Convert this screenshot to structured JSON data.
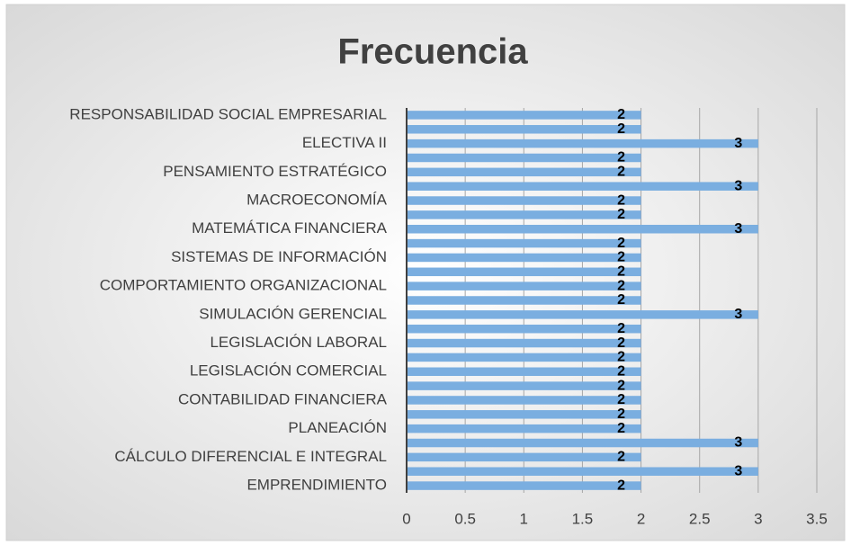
{
  "chart_data": {
    "type": "bar",
    "orientation": "horizontal",
    "title": "Frecuencia",
    "categories": [
      "RESPONSABILIDAD SOCIAL EMPRESARIAL",
      null,
      "ELECTIVA II",
      null,
      "PENSAMIENTO ESTRATÉGICO",
      null,
      "MACROECONOMÍA ",
      null,
      "MATEMÁTICA FINANCIERA",
      null,
      "SISTEMAS DE INFORMACIÓN",
      null,
      "COMPORTAMIENTO ORGANIZACIONAL",
      null,
      "SIMULACIÓN GERENCIAL",
      null,
      "LEGISLACIÓN LABORAL",
      null,
      "LEGISLACIÓN COMERCIAL",
      null,
      "CONTABILIDAD FINANCIERA",
      null,
      "PLANEACIÓN",
      null,
      "CÁLCULO DIFERENCIAL E INTEGRAL",
      null,
      "EMPRENDIMIENTO"
    ],
    "values": [
      2,
      2,
      3,
      2,
      2,
      3,
      2,
      2,
      3,
      2,
      2,
      2,
      2,
      2,
      3,
      2,
      2,
      2,
      2,
      2,
      2,
      2,
      2,
      3,
      2,
      3,
      2
    ],
    "color": "#7aaee0",
    "xlim": [
      0,
      3.5
    ],
    "xticks": [
      0,
      0.5,
      1,
      1.5,
      2,
      2.5,
      3,
      3.5
    ],
    "grid": true
  }
}
